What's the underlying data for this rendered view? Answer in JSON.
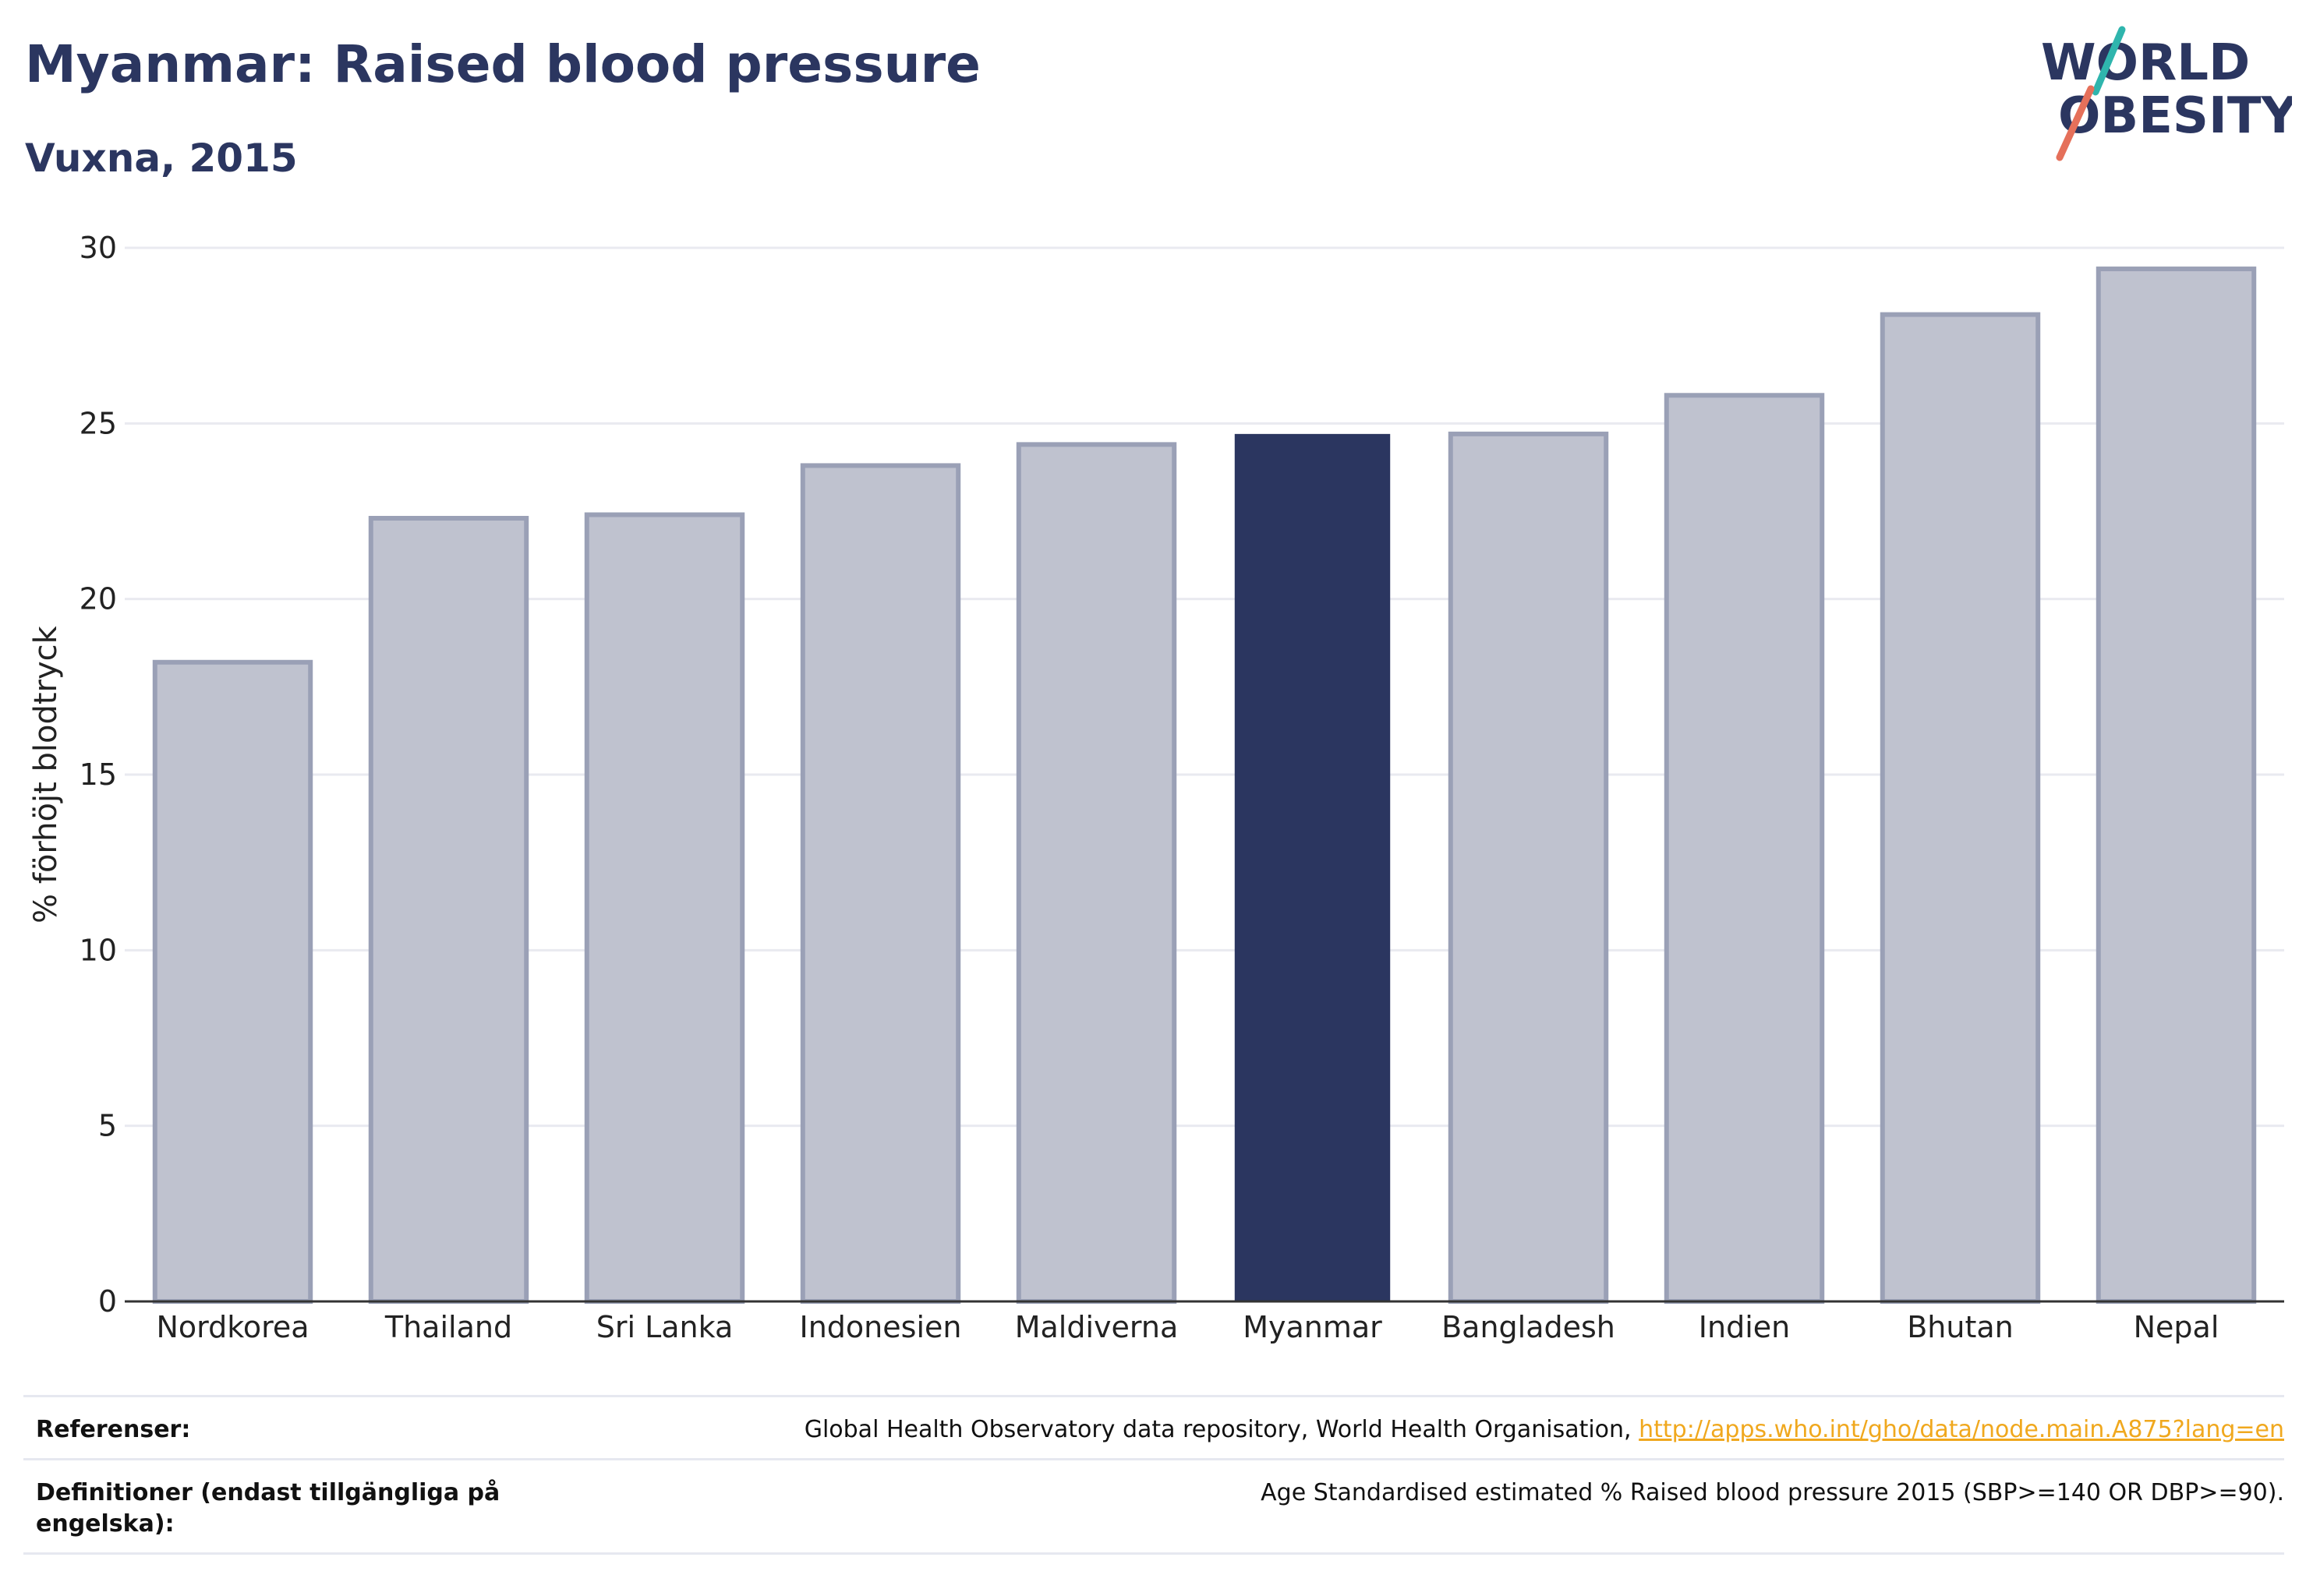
{
  "header": {
    "title": "Myanmar: Raised blood pressure",
    "subtitle": "Vuxna, 2015"
  },
  "logo": {
    "line1": "WORLD",
    "line2": "OBESITY"
  },
  "colors": {
    "highlight": "#2b3660",
    "other": "#bfc2cf",
    "other_stroke": "#9aa0b6",
    "link": "#f0a81e"
  },
  "chart_data": {
    "type": "bar",
    "categories": [
      "Nordkorea",
      "Thailand",
      "Sri Lanka",
      "Indonesien",
      "Maldiverna",
      "Myanmar",
      "Bangladesh",
      "Indien",
      "Bhutan",
      "Nepal"
    ],
    "values": [
      18.2,
      22.3,
      22.4,
      23.8,
      24.4,
      24.7,
      24.7,
      25.8,
      28.1,
      29.4
    ],
    "highlight": "Myanmar",
    "ylabel": "% förhöjt blodtryck",
    "xlabel": "",
    "ylim": [
      0,
      30
    ],
    "yticks": [
      0,
      5,
      10,
      15,
      20,
      25,
      30
    ],
    "grid": true
  },
  "footer": {
    "ref_label": "Referenser:",
    "ref_text": "Global Health Observatory data repository, World Health Organisation,",
    "ref_link": "http://apps.who.int/gho/data/node.main.A875?lang=en",
    "def_label": "Definitioner (endast tillgängliga på engelska):",
    "def_text": "Age Standardised estimated % Raised blood pressure 2015 (SBP>=140 OR DBP>=90)."
  }
}
